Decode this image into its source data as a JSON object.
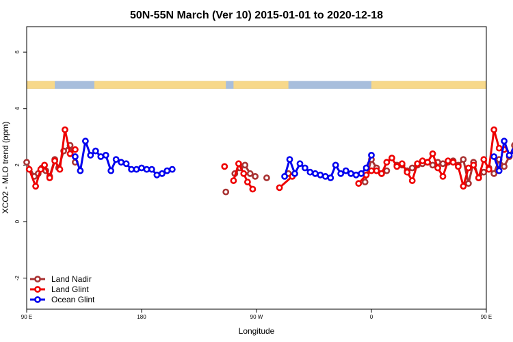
{
  "chart_data": {
    "type": "line",
    "title": "50N-55N March (Ver 10)   2015-01-01 to 2020-12-18",
    "xlabel": "Longitude",
    "ylabel": "XCO2 - MLO trend (ppm)",
    "xlim": [
      90,
      450
    ],
    "ylim": [
      -3.1,
      6.9
    ],
    "x_ticks": [
      {
        "value": 90,
        "label": "90 E"
      },
      {
        "value": 180,
        "label": "180"
      },
      {
        "value": 270,
        "label": "90 W"
      },
      {
        "value": 360,
        "label": "0"
      },
      {
        "value": 450,
        "label": "90 E"
      },
      {
        "value": 540,
        "label": "180"
      }
    ],
    "y_ticks": [
      {
        "value": -2,
        "label": "-2"
      },
      {
        "value": 0,
        "label": "0"
      },
      {
        "value": 2,
        "label": "2"
      },
      {
        "value": 4,
        "label": "4"
      },
      {
        "value": 6,
        "label": "6"
      }
    ],
    "grid": false,
    "legend_position": "bottom-left",
    "land_band": {
      "y_range": [
        4.7,
        4.98
      ],
      "land_color": "#f7d88a",
      "ocean_color": "#a8bedc"
    },
    "series": [
      {
        "name": "Land Nadir",
        "color": "#a83232",
        "segments": [
          [
            [
              90,
              2.1
            ],
            [
              96,
              1.6
            ],
            [
              99,
              1.7
            ],
            [
              102,
              1.9
            ],
            [
              105,
              1.8
            ],
            [
              108,
              1.6
            ],
            [
              112,
              2.2
            ],
            [
              115,
              1.9
            ],
            [
              119,
              2.5
            ],
            [
              124,
              2.7
            ],
            [
              128,
              2.1
            ]
          ],
          [
            [
              246,
              1.05
            ]
          ],
          [
            [
              253,
              1.7
            ],
            [
              257,
              1.9
            ],
            [
              261,
              2.0
            ],
            [
              265,
              1.7
            ],
            [
              269,
              1.6
            ]
          ],
          [
            [
              278,
              1.55
            ]
          ],
          [
            [
              295,
              1.7
            ]
          ],
          [
            [
              355,
              1.4
            ],
            [
              360,
              2.2
            ],
            [
              364,
              1.9
            ],
            [
              368,
              1.7
            ],
            [
              372,
              1.8
            ]
          ],
          [
            [
              380,
              2.0
            ],
            [
              384,
              2.0
            ],
            [
              388,
              1.8
            ],
            [
              392,
              1.9
            ],
            [
              396,
              2.0
            ],
            [
              400,
              2.05
            ],
            [
              404,
              2.1
            ],
            [
              408,
              2.0
            ],
            [
              412,
              2.1
            ],
            [
              416,
              2.05
            ],
            [
              420,
              2.1
            ],
            [
              424,
              2.15
            ],
            [
              428,
              2.0
            ],
            [
              432,
              2.2
            ],
            [
              436,
              1.35
            ],
            [
              440,
              2.1
            ],
            [
              444,
              1.55
            ],
            [
              448,
              1.75
            ],
            [
              452,
              1.9
            ],
            [
              456,
              1.7
            ],
            [
              460,
              2.2
            ],
            [
              464,
              1.95
            ],
            [
              468,
              2.3
            ],
            [
              472,
              2.7
            ],
            [
              476,
              2.05
            ]
          ]
        ]
      },
      {
        "name": "Land Glint",
        "color": "#ee0000",
        "segments": [
          [
            [
              92,
              1.85
            ],
            [
              97,
              1.25
            ],
            [
              101,
              1.85
            ],
            [
              104,
              2.0
            ],
            [
              108,
              1.55
            ],
            [
              112,
              2.15
            ],
            [
              116,
              1.85
            ],
            [
              120,
              3.25
            ],
            [
              124,
              2.4
            ],
            [
              128,
              2.55
            ]
          ],
          [
            [
              245,
              1.95
            ]
          ],
          [
            [
              252,
              1.45
            ],
            [
              256,
              2.05
            ],
            [
              260,
              1.7
            ],
            [
              263,
              1.4
            ],
            [
              267,
              1.15
            ]
          ],
          [
            [
              288,
              1.2
            ],
            [
              298,
              1.6
            ]
          ],
          [
            [
              350,
              1.35
            ],
            [
              356,
              1.65
            ],
            [
              360,
              1.8
            ],
            [
              364,
              1.8
            ],
            [
              368,
              1.7
            ],
            [
              372,
              2.1
            ],
            [
              376,
              2.25
            ],
            [
              380,
              1.95
            ],
            [
              384,
              2.05
            ],
            [
              388,
              1.75
            ],
            [
              392,
              1.45
            ],
            [
              396,
              2.05
            ],
            [
              400,
              2.15
            ],
            [
              404,
              2.1
            ],
            [
              408,
              2.4
            ],
            [
              412,
              1.9
            ],
            [
              416,
              1.6
            ],
            [
              420,
              2.15
            ],
            [
              424,
              2.1
            ],
            [
              428,
              1.95
            ],
            [
              432,
              1.25
            ],
            [
              436,
              1.9
            ],
            [
              440,
              2.0
            ],
            [
              444,
              1.55
            ],
            [
              448,
              2.2
            ],
            [
              452,
              1.85
            ],
            [
              456,
              3.25
            ],
            [
              460,
              2.6
            ],
            [
              464,
              2.55
            ]
          ]
        ]
      },
      {
        "name": "Ocean Glint",
        "color": "#0000ee",
        "segments": [
          [
            [
              128,
              2.3
            ],
            [
              132,
              1.8
            ],
            [
              136,
              2.85
            ],
            [
              140,
              2.35
            ],
            [
              144,
              2.5
            ],
            [
              148,
              2.3
            ],
            [
              152,
              2.35
            ],
            [
              156,
              1.8
            ],
            [
              160,
              2.2
            ],
            [
              164,
              2.1
            ],
            [
              168,
              2.05
            ],
            [
              172,
              1.85
            ],
            [
              176,
              1.85
            ],
            [
              180,
              1.9
            ],
            [
              184,
              1.85
            ],
            [
              188,
              1.85
            ],
            [
              192,
              1.65
            ],
            [
              196,
              1.7
            ],
            [
              200,
              1.8
            ],
            [
              204,
              1.85
            ]
          ],
          [
            [
              292,
              1.6
            ],
            [
              296,
              2.2
            ],
            [
              300,
              1.7
            ],
            [
              304,
              2.05
            ],
            [
              308,
              1.9
            ],
            [
              312,
              1.75
            ],
            [
              316,
              1.7
            ],
            [
              320,
              1.65
            ],
            [
              324,
              1.6
            ],
            [
              328,
              1.55
            ],
            [
              332,
              2.0
            ],
            [
              336,
              1.7
            ],
            [
              340,
              1.8
            ],
            [
              344,
              1.7
            ],
            [
              348,
              1.65
            ],
            [
              352,
              1.7
            ],
            [
              356,
              1.9
            ],
            [
              360,
              2.35
            ]
          ],
          [
            [
              456,
              2.3
            ],
            [
              460,
              1.8
            ],
            [
              464,
              2.85
            ],
            [
              468,
              2.35
            ],
            [
              472,
              2.5
            ],
            [
              476,
              2.3
            ],
            [
              480,
              2.35
            ],
            [
              484,
              1.8
            ]
          ]
        ]
      }
    ]
  }
}
